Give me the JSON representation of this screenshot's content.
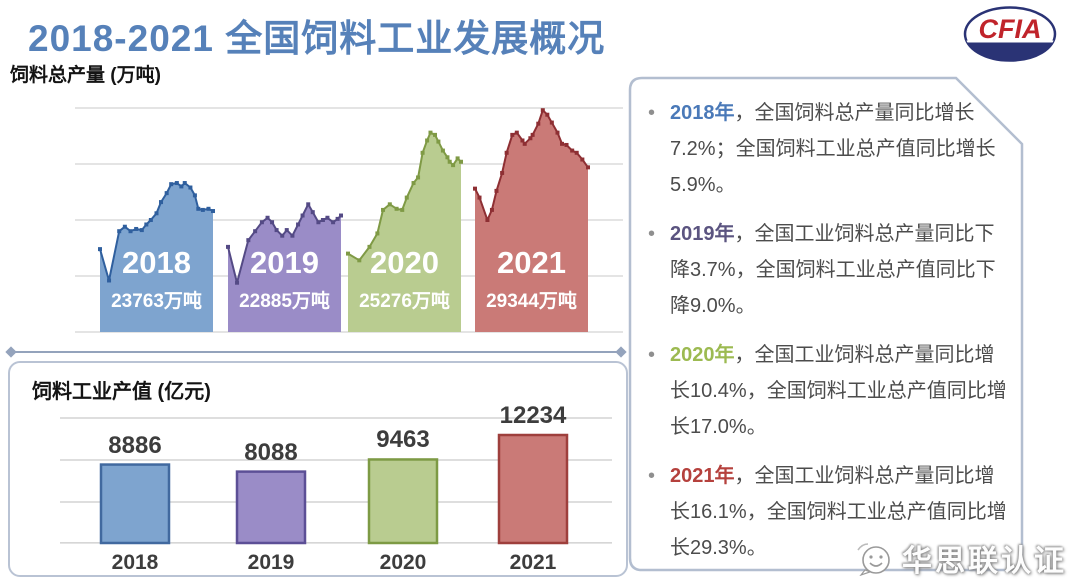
{
  "title": "2018-2021 全国饲料工业发展概况",
  "logo": {
    "text": "CFIA",
    "ring_color": "#2a3375",
    "text_color": "#c0242b"
  },
  "watermark": {
    "text": "华思联认证",
    "icon": "face-bubble-icon"
  },
  "panel": {
    "bullets": [
      {
        "year": "2018年",
        "color": "#4a79b8",
        "text": "，全国饲料总产量同比增长7.2%；全国饲料工业总产值同比增长5.9%。"
      },
      {
        "year": "2019年",
        "color": "#5b5480",
        "text": "，全国工业饲料总产量同比下降3.7%，全国饲料工业总产值同比下降9.0%。"
      },
      {
        "year": "2020年",
        "color": "#9cba51",
        "text": "，全国工业饲料总产量同比增长10.4%，全国饲料工业总产值同比增长17.0%。"
      },
      {
        "year": "2021年",
        "color": "#b5413d",
        "text": "，全国工业饲料总产量同比增长16.1%，全国饲料工业总产值同比增长29.3%。"
      }
    ]
  },
  "chart_data": [
    {
      "type": "area",
      "title": "饲料总产量 (万吨)",
      "ylabel": "万吨",
      "grid": true,
      "legend_position": "none",
      "series": [
        {
          "year": "2018",
          "total": 23763,
          "label": "23763万吨",
          "fill": "#7ea4cf",
          "line": "#2f5f9e",
          "profile": [
            [
              0,
              0.37
            ],
            [
              0.08,
              0.23
            ],
            [
              0.17,
              0.45
            ],
            [
              0.22,
              0.47
            ],
            [
              0.27,
              0.45
            ],
            [
              0.32,
              0.46
            ],
            [
              0.37,
              0.455
            ],
            [
              0.41,
              0.48
            ],
            [
              0.45,
              0.5
            ],
            [
              0.5,
              0.53
            ],
            [
              0.54,
              0.58
            ],
            [
              0.59,
              0.62
            ],
            [
              0.63,
              0.66
            ],
            [
              0.68,
              0.665
            ],
            [
              0.72,
              0.65
            ],
            [
              0.75,
              0.665
            ],
            [
              0.8,
              0.645
            ],
            [
              0.84,
              0.61
            ],
            [
              0.87,
              0.55
            ],
            [
              0.91,
              0.545
            ],
            [
              0.96,
              0.55
            ],
            [
              1,
              0.54
            ]
          ]
        },
        {
          "year": "2019",
          "total": 22885,
          "label": "22885万吨",
          "fill": "#9a8cc7",
          "line": "#544a85",
          "profile": [
            [
              0,
              0.38
            ],
            [
              0.08,
              0.22
            ],
            [
              0.18,
              0.41
            ],
            [
              0.24,
              0.45
            ],
            [
              0.3,
              0.49
            ],
            [
              0.35,
              0.51
            ],
            [
              0.39,
              0.49
            ],
            [
              0.43,
              0.455
            ],
            [
              0.48,
              0.43
            ],
            [
              0.52,
              0.455
            ],
            [
              0.57,
              0.43
            ],
            [
              0.62,
              0.48
            ],
            [
              0.66,
              0.52
            ],
            [
              0.71,
              0.57
            ],
            [
              0.75,
              0.535
            ],
            [
              0.8,
              0.49
            ],
            [
              0.84,
              0.5
            ],
            [
              0.88,
              0.51
            ],
            [
              0.93,
              0.49
            ],
            [
              0.97,
              0.505
            ],
            [
              1,
              0.52
            ]
          ]
        },
        {
          "year": "2020",
          "total": 25276,
          "label": "25276万吨",
          "fill": "#b9cc90",
          "line": "#7f9a45",
          "profile": [
            [
              0,
              0.35
            ],
            [
              0.1,
              0.32
            ],
            [
              0.19,
              0.38
            ],
            [
              0.26,
              0.44
            ],
            [
              0.31,
              0.545
            ],
            [
              0.37,
              0.57
            ],
            [
              0.43,
              0.55
            ],
            [
              0.48,
              0.545
            ],
            [
              0.52,
              0.6
            ],
            [
              0.58,
              0.665
            ],
            [
              0.62,
              0.69
            ],
            [
              0.66,
              0.8
            ],
            [
              0.7,
              0.855
            ],
            [
              0.73,
              0.89
            ],
            [
              0.77,
              0.88
            ],
            [
              0.8,
              0.85
            ],
            [
              0.84,
              0.81
            ],
            [
              0.88,
              0.78
            ],
            [
              0.9,
              0.76
            ],
            [
              0.93,
              0.745
            ],
            [
              0.97,
              0.775
            ],
            [
              1,
              0.76
            ]
          ]
        },
        {
          "year": "2021",
          "total": 29344,
          "label": "29344万吨",
          "fill": "#ca7a77",
          "line": "#8e2f33",
          "profile": [
            [
              0,
              0.64
            ],
            [
              0.04,
              0.6
            ],
            [
              0.11,
              0.5
            ],
            [
              0.15,
              0.545
            ],
            [
              0.19,
              0.63
            ],
            [
              0.24,
              0.71
            ],
            [
              0.28,
              0.8
            ],
            [
              0.33,
              0.88
            ],
            [
              0.37,
              0.89
            ],
            [
              0.42,
              0.855
            ],
            [
              0.44,
              0.84
            ],
            [
              0.49,
              0.865
            ],
            [
              0.51,
              0.88
            ],
            [
              0.56,
              0.93
            ],
            [
              0.6,
              0.99
            ],
            [
              0.64,
              0.97
            ],
            [
              0.68,
              0.935
            ],
            [
              0.73,
              0.89
            ],
            [
              0.77,
              0.84
            ],
            [
              0.81,
              0.835
            ],
            [
              0.86,
              0.81
            ],
            [
              0.9,
              0.8
            ],
            [
              0.95,
              0.77
            ],
            [
              1,
              0.735
            ]
          ]
        }
      ]
    },
    {
      "type": "bar",
      "title": "饲料工业产值 (亿元)",
      "ylabel": "亿元",
      "grid": true,
      "categories": [
        "2018",
        "2019",
        "2020",
        "2021"
      ],
      "values": [
        8886,
        8088,
        9463,
        12234
      ],
      "colors": [
        "#7ea4cf",
        "#9a8cc7",
        "#b9cc90",
        "#ca7a77"
      ],
      "border_colors": [
        "#41699f",
        "#5c4f96",
        "#7d9a44",
        "#9e3f3c"
      ],
      "ylim": [
        0,
        12800
      ]
    }
  ]
}
